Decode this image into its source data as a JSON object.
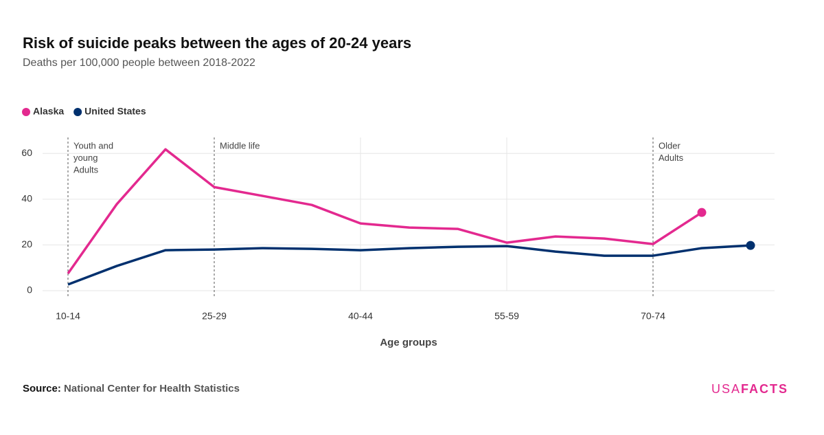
{
  "chart_data": {
    "type": "line",
    "title": "Risk of suicide peaks between the ages of 20-24 years",
    "subtitle": "Deaths per 100,000 people between 2018-2022",
    "x_label": "Age groups",
    "categories": [
      "10-14",
      null,
      null,
      "25-29",
      null,
      null,
      "40-44",
      null,
      null,
      "55-59",
      null,
      null,
      "70-74",
      null,
      null
    ],
    "series": [
      {
        "name": "Alaska",
        "color": "#e3298f",
        "values": [
          7.5,
          37.8,
          61.8,
          45.3,
          41.4,
          37.5,
          29.4,
          27.6,
          27,
          21,
          23.7,
          22.8,
          20.4,
          34.2,
          null
        ]
      },
      {
        "name": "United States",
        "color": "#00306e",
        "values": [
          2.7,
          10.8,
          17.7,
          18,
          18.6,
          18.3,
          17.7,
          18.6,
          19.2,
          19.5,
          17.1,
          15.3,
          15.3,
          18.6,
          19.8
        ]
      }
    ],
    "ylim": [
      0,
      67
    ],
    "yticks": [
      0,
      20,
      40,
      60
    ],
    "grid": true,
    "annotations": [
      {
        "category": "10-14",
        "lines": [
          "Youth and",
          "young",
          "Adults"
        ]
      },
      {
        "category": "25-29",
        "lines": [
          "Middle life"
        ]
      },
      {
        "category": "70-74",
        "lines": [
          "Older",
          "Adults"
        ]
      }
    ],
    "source_label": "Source:",
    "source": "National Center for Health Statistics",
    "logo": [
      "USA",
      "FACTS"
    ]
  }
}
